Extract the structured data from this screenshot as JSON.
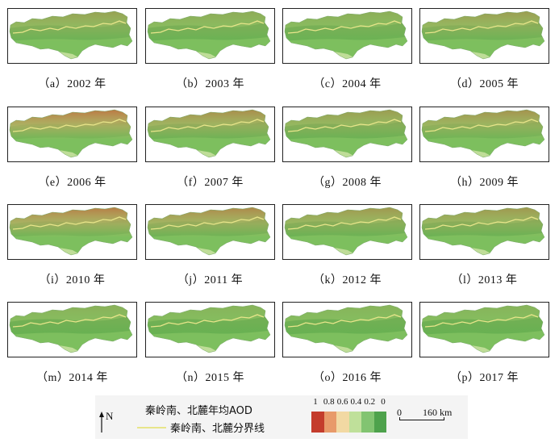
{
  "panels": [
    {
      "caption": "（a）2002 年",
      "dark": 0.35,
      "red": 0.3
    },
    {
      "caption": "（b）2003 年",
      "dark": 0.4,
      "red": 0.2
    },
    {
      "caption": "（c）2004 年",
      "dark": 0.4,
      "red": 0.18
    },
    {
      "caption": "（d）2005 年",
      "dark": 0.35,
      "red": 0.35
    },
    {
      "caption": "（e）2006 年",
      "dark": 0.25,
      "red": 0.7
    },
    {
      "caption": "（f）2007 年",
      "dark": 0.35,
      "red": 0.5
    },
    {
      "caption": "（g）2008 年",
      "dark": 0.4,
      "red": 0.35
    },
    {
      "caption": "（h）2009 年",
      "dark": 0.3,
      "red": 0.45
    },
    {
      "caption": "（i）2010 年",
      "dark": 0.3,
      "red": 0.65
    },
    {
      "caption": "（j）2011 年",
      "dark": 0.35,
      "red": 0.55
    },
    {
      "caption": "（k）2012 年",
      "dark": 0.4,
      "red": 0.4
    },
    {
      "caption": "（l）2013 年",
      "dark": 0.4,
      "red": 0.4
    },
    {
      "caption": "（m）2014 年",
      "dark": 0.45,
      "red": 0.15
    },
    {
      "caption": "（n）2015 年",
      "dark": 0.45,
      "red": 0.12
    },
    {
      "caption": "（o）2016 年",
      "dark": 0.45,
      "red": 0.12
    },
    {
      "caption": "（p）2017 年",
      "dark": 0.45,
      "red": 0.12
    }
  ],
  "legend": {
    "title": "秦岭南、北麓年均AOD",
    "boundary_label": "秦岭南、北麓分界线",
    "north_label": "N",
    "ramp_ticks": [
      "1",
      "0.8",
      "0.6",
      "0.4",
      "0.2",
      "0"
    ],
    "ramp_colors": [
      "#c43c2c",
      "#e89a6a",
      "#f2d9a3",
      "#bfe09a",
      "#82c471",
      "#4ea24c"
    ],
    "boundary_color": "#e8e58a",
    "scale_zero": "0",
    "scale_distance": "160 km"
  }
}
